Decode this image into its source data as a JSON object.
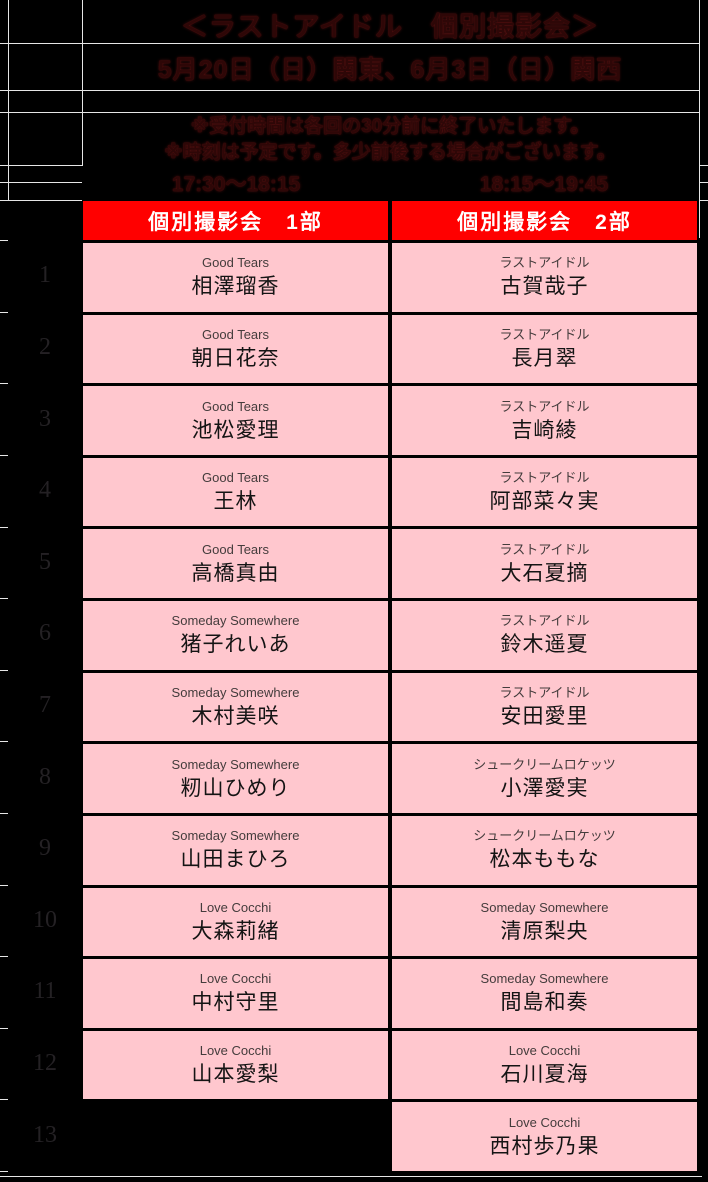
{
  "header": {
    "title": "＜ラストアイドル　個別撮影会＞",
    "date_line": "5月20日（日）関東、6月3日（日）関西",
    "note_1": "※受付時間は各回の30分前に終了いたします。",
    "note_2": "※時刻は予定です。多少前後する場合がございます。",
    "time_slot_1": "17:30～18:15",
    "time_slot_2": "18:15～19:45"
  },
  "columns": {
    "part1_header": "個別撮影会　1部",
    "part2_header": "個別撮影会　2部"
  },
  "rows": [
    {
      "no": "1",
      "part1": {
        "group": "Good Tears",
        "name": "相澤瑠香"
      },
      "part2": {
        "group": "ラストアイドル",
        "name": "古賀哉子"
      }
    },
    {
      "no": "2",
      "part1": {
        "group": "Good Tears",
        "name": "朝日花奈"
      },
      "part2": {
        "group": "ラストアイドル",
        "name": "長月翠"
      }
    },
    {
      "no": "3",
      "part1": {
        "group": "Good Tears",
        "name": "池松愛理"
      },
      "part2": {
        "group": "ラストアイドル",
        "name": "吉崎綾"
      }
    },
    {
      "no": "4",
      "part1": {
        "group": "Good Tears",
        "name": "王林"
      },
      "part2": {
        "group": "ラストアイドル",
        "name": "阿部菜々実"
      }
    },
    {
      "no": "5",
      "part1": {
        "group": "Good Tears",
        "name": "高橋真由"
      },
      "part2": {
        "group": "ラストアイドル",
        "name": "大石夏摘"
      }
    },
    {
      "no": "6",
      "part1": {
        "group": "Someday Somewhere",
        "name": "猪子れいあ"
      },
      "part2": {
        "group": "ラストアイドル",
        "name": "鈴木遥夏"
      }
    },
    {
      "no": "7",
      "part1": {
        "group": "Someday Somewhere",
        "name": "木村美咲"
      },
      "part2": {
        "group": "ラストアイドル",
        "name": "安田愛里"
      }
    },
    {
      "no": "8",
      "part1": {
        "group": "Someday Somewhere",
        "name": "籾山ひめり"
      },
      "part2": {
        "group": "シュークリームロケッツ",
        "name": "小澤愛実"
      }
    },
    {
      "no": "9",
      "part1": {
        "group": "Someday Somewhere",
        "name": "山田まひろ"
      },
      "part2": {
        "group": "シュークリームロケッツ",
        "name": "松本ももな"
      }
    },
    {
      "no": "10",
      "part1": {
        "group": "Love Cocchi",
        "name": "大森莉緒"
      },
      "part2": {
        "group": "Someday Somewhere",
        "name": "清原梨央"
      }
    },
    {
      "no": "11",
      "part1": {
        "group": "Love Cocchi",
        "name": "中村守里"
      },
      "part2": {
        "group": "Someday Somewhere",
        "name": "間島和奏"
      }
    },
    {
      "no": "12",
      "part1": {
        "group": "Love Cocchi",
        "name": "山本愛梨"
      },
      "part2": {
        "group": "Love Cocchi",
        "name": "石川夏海"
      }
    },
    {
      "no": "13",
      "part1": null,
      "part2": {
        "group": "Love Cocchi",
        "name": "西村歩乃果"
      }
    }
  ],
  "colors": {
    "background": "#000000",
    "header_red": "#ff0000",
    "cell_pink": "#ffc7ce",
    "grid_line_white": "#e6e6e6",
    "top_text_dark_red": "#2e0707"
  }
}
